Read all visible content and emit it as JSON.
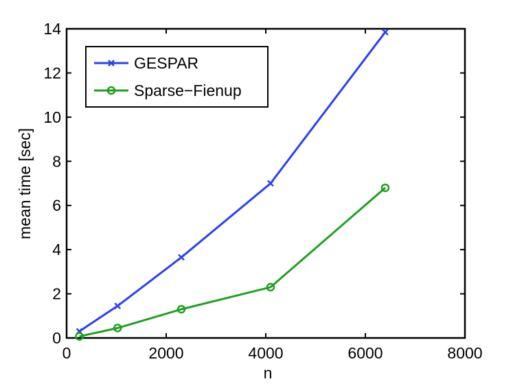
{
  "chart_data": {
    "type": "line",
    "x": [
      256,
      1024,
      2304,
      4096,
      6400
    ],
    "series": [
      {
        "name": "GESPAR",
        "color": "#2a3ff5",
        "marker": "x",
        "values": [
          0.3,
          1.45,
          3.65,
          7.0,
          13.85
        ]
      },
      {
        "name": "Sparse−Fienup",
        "color": "#1ea01e",
        "marker": "o",
        "values": [
          0.07,
          0.45,
          1.3,
          2.3,
          6.8
        ]
      }
    ],
    "xlabel": "n",
    "ylabel": "mean time [sec]",
    "xlim": [
      0,
      8000
    ],
    "xticks": [
      0,
      2000,
      4000,
      6000,
      8000
    ],
    "ylim": [
      0,
      14
    ],
    "yticks": [
      0,
      2,
      4,
      6,
      8,
      10,
      12,
      14
    ],
    "grid": false,
    "legend": "upper-left"
  }
}
